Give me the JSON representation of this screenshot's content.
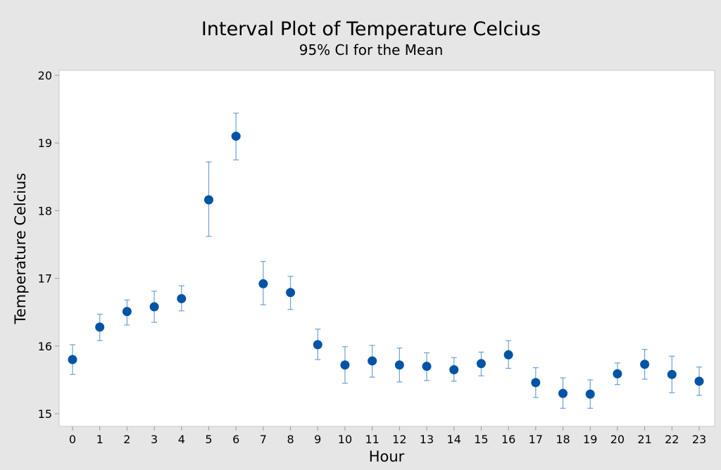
{
  "chart_data": {
    "type": "scatter",
    "subtype": "interval",
    "title": "Interval Plot of Temperature Celcius",
    "subtitle": "95% CI for the Mean",
    "xlabel": "Hour",
    "ylabel": "Temperature Celcius",
    "ylim": [
      15,
      20
    ],
    "yticks": [
      "15",
      "16",
      "17",
      "18",
      "19",
      "20"
    ],
    "categories": [
      "0",
      "1",
      "2",
      "3",
      "4",
      "5",
      "6",
      "7",
      "8",
      "9",
      "10",
      "11",
      "12",
      "13",
      "14",
      "15",
      "16",
      "17",
      "18",
      "19",
      "20",
      "21",
      "22",
      "23"
    ],
    "mean": [
      15.8,
      16.28,
      16.51,
      16.58,
      16.7,
      18.16,
      19.1,
      16.92,
      16.79,
      16.02,
      15.72,
      15.78,
      15.72,
      15.7,
      15.65,
      15.74,
      15.87,
      15.46,
      15.3,
      15.29,
      15.59,
      15.73,
      15.58,
      15.48
    ],
    "upper": [
      16.02,
      16.47,
      16.68,
      16.81,
      16.89,
      18.72,
      19.44,
      17.25,
      17.03,
      16.25,
      15.99,
      16.01,
      15.97,
      15.9,
      15.83,
      15.91,
      16.08,
      15.68,
      15.53,
      15.5,
      15.75,
      15.95,
      15.85,
      15.69
    ],
    "lower": [
      15.58,
      16.08,
      16.31,
      16.35,
      16.52,
      17.62,
      18.75,
      16.61,
      16.54,
      15.8,
      15.45,
      15.54,
      15.47,
      15.49,
      15.48,
      15.56,
      15.67,
      15.24,
      15.08,
      15.08,
      15.43,
      15.51,
      15.31,
      15.27
    ],
    "grid": false,
    "colors": {
      "marker": "#0054a6",
      "errorbar": "#6e9fd6",
      "background": "#e6e6e6",
      "plot_bg": "#ffffff"
    }
  }
}
